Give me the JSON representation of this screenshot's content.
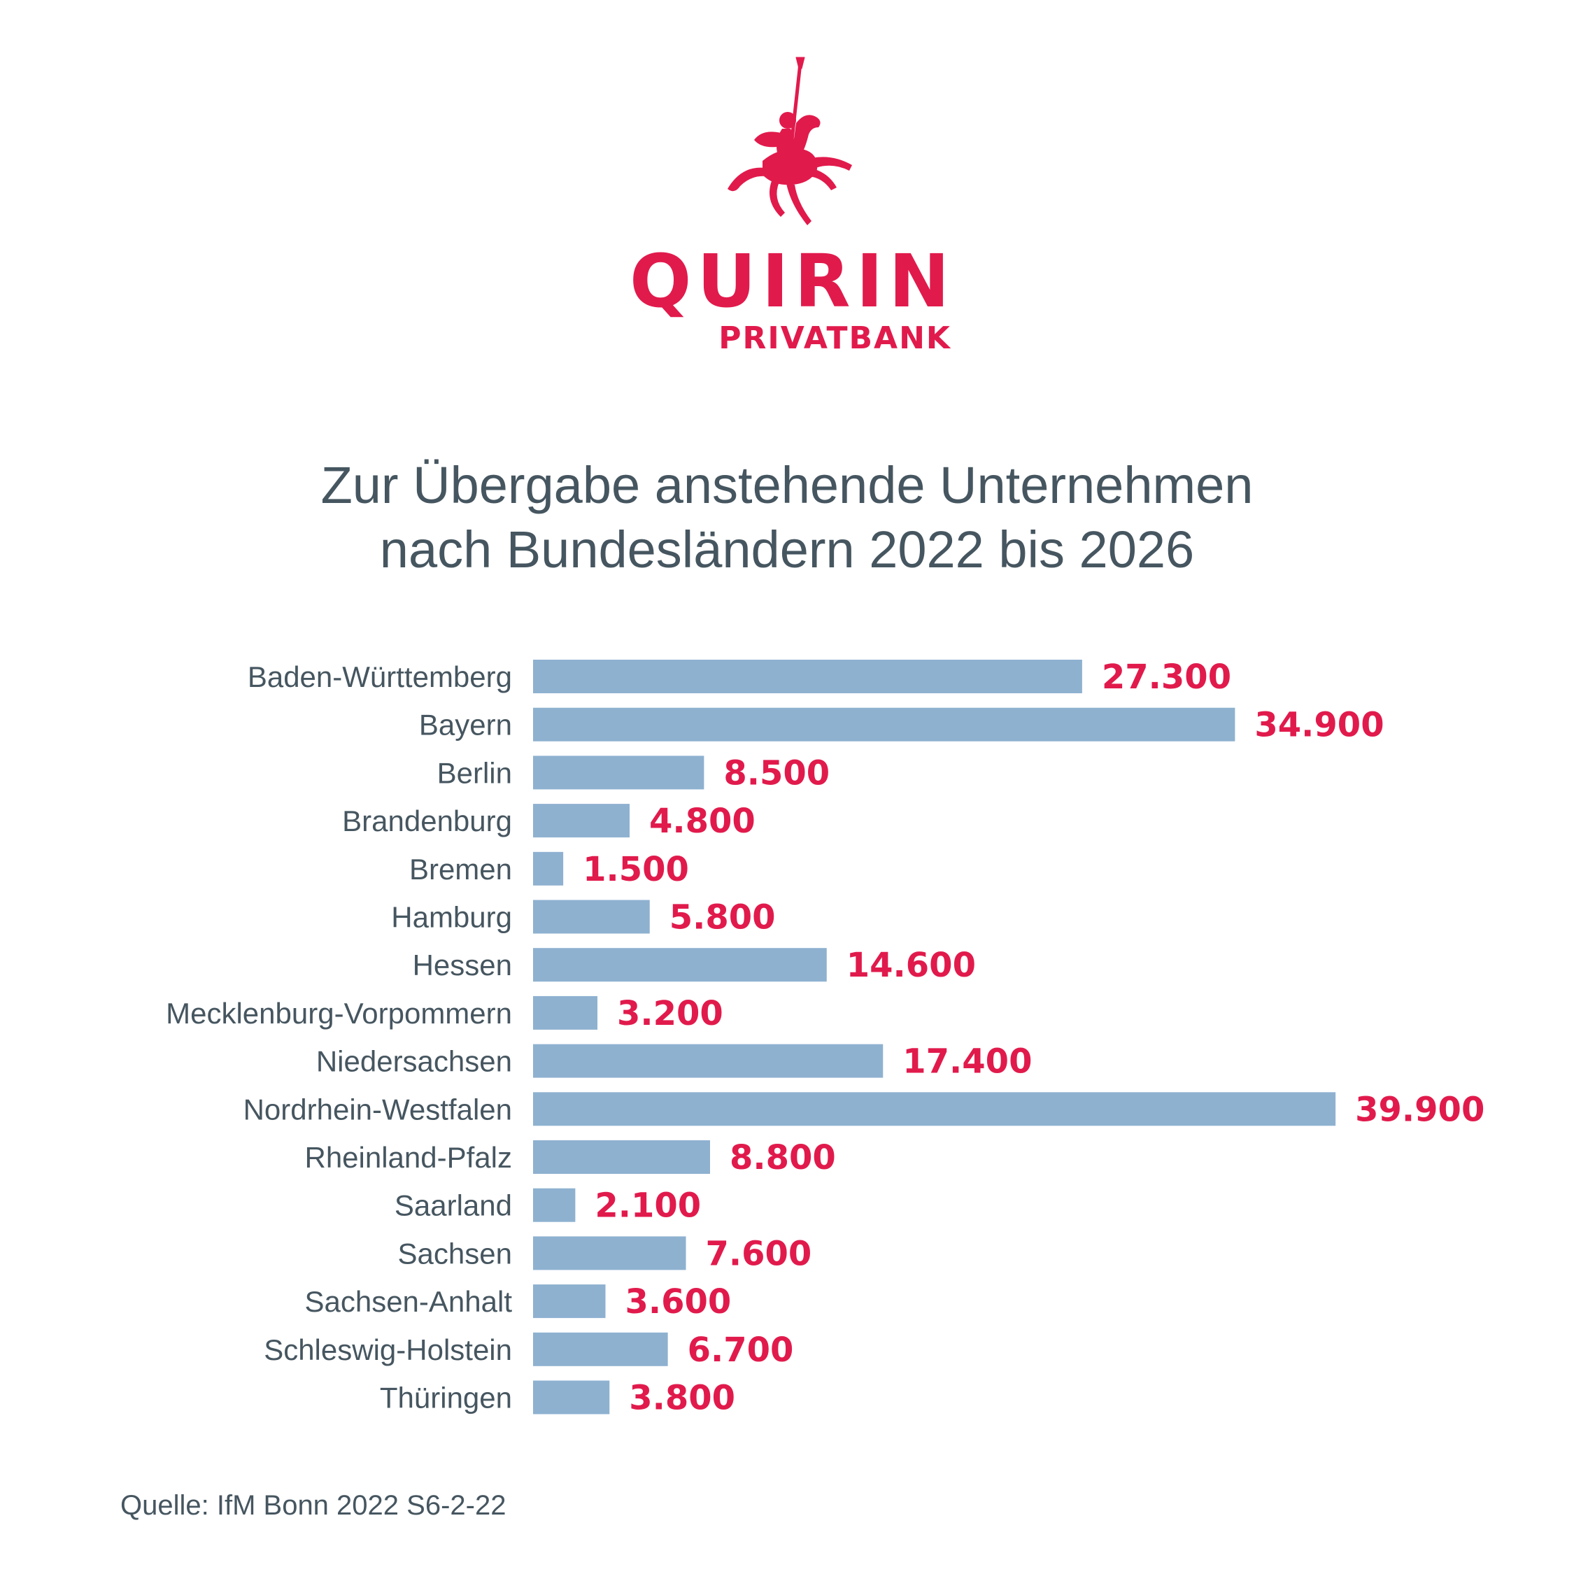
{
  "brand": {
    "name": "QUIRIN",
    "subname": "PRIVATBANK",
    "logo_icon": "knight-on-horse-icon",
    "color": "#e11a4c"
  },
  "colors": {
    "bar": "#8eb1d0",
    "value_label": "#e11a4c",
    "text": "#465660"
  },
  "chart_data": {
    "type": "bar",
    "orientation": "horizontal",
    "title": "Zur Übergabe anstehende Unternehmen nach Bundesländern 2022 bis 2026",
    "title_lines": [
      "Zur Übergabe anstehende Unternehmen",
      "nach Bundesländern 2022 bis 2026"
    ],
    "categories": [
      "Baden-Württemberg",
      "Bayern",
      "Berlin",
      "Brandenburg",
      "Bremen",
      "Hamburg",
      "Hessen",
      "Mecklenburg-Vorpommern",
      "Niedersachsen",
      "Nordrhein-Westfalen",
      "Rheinland-Pfalz",
      "Saarland",
      "Sachsen",
      "Sachsen-Anhalt",
      "Schleswig-Holstein",
      "Thüringen"
    ],
    "values": [
      27300,
      34900,
      8500,
      4800,
      1500,
      5800,
      14600,
      3200,
      17400,
      39900,
      8800,
      2100,
      7600,
      3600,
      6700,
      3800
    ],
    "value_labels": [
      "27.300",
      "34.900",
      "8.500",
      "4.800",
      "1.500",
      "5.800",
      "14.600",
      "3.200",
      "17.400",
      "39.900",
      "8.800",
      "2.100",
      "7.600",
      "3.600",
      "6.700",
      "3.800"
    ],
    "xlim": [
      0,
      40000
    ],
    "grid": false,
    "legend": "none",
    "xlabel": "",
    "ylabel": ""
  },
  "source": "Quelle: IfM Bonn 2022 S6-2-22"
}
